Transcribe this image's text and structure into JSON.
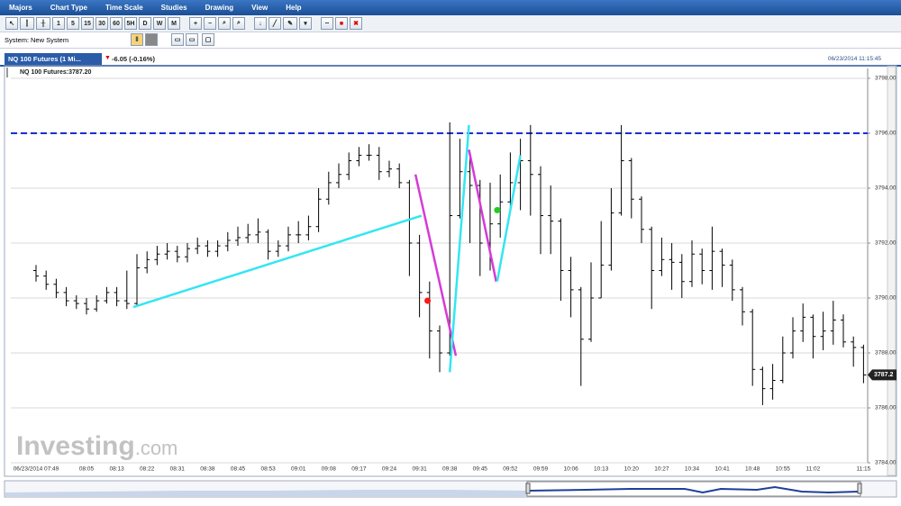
{
  "menu": [
    "Majors",
    "Chart Type",
    "Time Scale",
    "Studies",
    "Drawing",
    "View",
    "Help"
  ],
  "toolbar": {
    "intervals": [
      "1",
      "5",
      "15",
      "30",
      "60",
      "5H",
      "D",
      "W",
      "M"
    ]
  },
  "system": {
    "label": "System:",
    "value": "New System"
  },
  "tab": {
    "title": "NQ 100 Futures (1 Mi...",
    "change": "-6.05 (-0.16%)",
    "timestamp": "06/23/2014 11:15:45"
  },
  "chart_data": {
    "type": "ohlc",
    "title": "NQ 100 Futures:3787.20",
    "categories": [
      "06/23/2014 07:49",
      null,
      null,
      null,
      null,
      "08:05",
      null,
      null,
      "08:13",
      null,
      null,
      "08:22",
      null,
      null,
      "08:31",
      null,
      null,
      "08:38",
      null,
      null,
      "08:45",
      null,
      null,
      "08:53",
      null,
      null,
      "09:01",
      null,
      null,
      "09:08",
      null,
      null,
      "09:17",
      null,
      null,
      "09:24",
      null,
      null,
      "09:31",
      null,
      null,
      "09:38",
      null,
      null,
      "09:45",
      null,
      null,
      "09:52",
      null,
      null,
      "09:59",
      null,
      null,
      "10:06",
      null,
      null,
      "10:13",
      null,
      null,
      "10:20",
      null,
      null,
      "10:27",
      null,
      null,
      "10:34",
      null,
      null,
      "10:41",
      null,
      null,
      "10:48",
      null,
      null,
      "10:55",
      null,
      null,
      "11:02",
      null,
      null,
      null,
      null,
      "11:15"
    ],
    "open": [
      3791.0,
      3790.8,
      3790.5,
      3790.2,
      3789.9,
      3789.8,
      3789.6,
      3789.9,
      3790.2,
      3789.9,
      3789.8,
      3791.1,
      3791.4,
      3791.6,
      3791.7,
      3791.5,
      3791.8,
      3791.9,
      3791.7,
      3791.9,
      3792.1,
      3792.2,
      3792.3,
      3792.4,
      3791.7,
      3791.9,
      3792.3,
      3792.3,
      3792.6,
      3793.6,
      3794.2,
      3794.5,
      3795,
      3795.2,
      3795.2,
      3794.6,
      3794.7,
      3794.2,
      3792,
      3790.2,
      3788.8,
      3788,
      3793,
      3794.6,
      3794.1,
      3792,
      3792.7,
      3793.5,
      3794.2,
      3795,
      3794.5,
      3793,
      3792.8,
      3791,
      3790.3,
      3788.5,
      3790,
      3791.2,
      3793.1,
      3795,
      3793.6,
      3792.5,
      3791,
      3791.4,
      3791.3,
      3790.6,
      3791.6,
      3791,
      3791.7,
      3791.2,
      3790.3,
      3789.5,
      3787.4,
      3786.7,
      3787,
      3788,
      3788.8,
      3789.3,
      3788.6,
      3788.8,
      3789.2,
      3788.4,
      3788.2
    ],
    "high": [
      3791.2,
      3791.0,
      3790.7,
      3790.4,
      3790.1,
      3790.0,
      3790.1,
      3790.4,
      3790.4,
      3791.0,
      3791.6,
      3791.7,
      3791.9,
      3792.0,
      3791.9,
      3792.0,
      3792.2,
      3792.1,
      3792.1,
      3792.4,
      3792.6,
      3792.7,
      3792.9,
      3792.5,
      3792.1,
      3792.6,
      3792.8,
      3793.0,
      3794.0,
      3794.6,
      3794.9,
      3795.3,
      3795.5,
      3795.6,
      3795.5,
      3795.0,
      3794.9,
      3794.3,
      3792.3,
      3790.6,
      3789.0,
      3796.4,
      3795.8,
      3795.2,
      3794.3,
      3794.2,
      3794.5,
      3795.3,
      3795.8,
      3796.3,
      3794.8,
      3794.1,
      3792.9,
      3791.5,
      3790.4,
      3791.3,
      3792.8,
      3794.0,
      3796.3,
      3795.1,
      3793.7,
      3792.6,
      3792.2,
      3792.0,
      3791.6,
      3792.1,
      3791.8,
      3792.6,
      3791.8,
      3791.4,
      3790.4,
      3789.6,
      3787.5,
      3787.6,
      3788.6,
      3789.3,
      3789.8,
      3789.4,
      3789.5,
      3789.9,
      3789.4,
      3788.6,
      3788.3
    ],
    "low": [
      3790.6,
      3790.3,
      3790.0,
      3789.7,
      3789.6,
      3789.4,
      3789.5,
      3789.8,
      3789.7,
      3789.6,
      3789.7,
      3790.9,
      3791.2,
      3791.4,
      3791.3,
      3791.3,
      3791.6,
      3791.5,
      3791.5,
      3791.7,
      3791.9,
      3792.0,
      3792.0,
      3791.4,
      3791.5,
      3791.7,
      3792.0,
      3792.1,
      3792.4,
      3793.4,
      3794.0,
      3794.3,
      3794.8,
      3795.0,
      3794.3,
      3794.4,
      3794.0,
      3790.8,
      3789.3,
      3787.8,
      3787.3,
      3787.9,
      3792.9,
      3792.0,
      3790.8,
      3791.0,
      3792.2,
      3793.3,
      3793.2,
      3793.0,
      3791.6,
      3791.6,
      3789.9,
      3789.3,
      3786.8,
      3788.4,
      3790.0,
      3791.0,
      3793.0,
      3792.9,
      3792.0,
      3789.6,
      3790.8,
      3790.3,
      3790.0,
      3790.4,
      3790.5,
      3790.3,
      3790.4,
      3789.9,
      3789.0,
      3786.8,
      3786.1,
      3786.3,
      3786.9,
      3787.8,
      3788.4,
      3787.8,
      3788.1,
      3788.3,
      3788.2,
      3787.5,
      3786.9
    ],
    "close": [
      3790.8,
      3790.5,
      3790.2,
      3789.9,
      3789.8,
      3789.6,
      3789.9,
      3790.2,
      3789.9,
      3789.8,
      3791.1,
      3791.4,
      3791.6,
      3791.7,
      3791.5,
      3791.8,
      3791.9,
      3791.7,
      3791.9,
      3792.1,
      3792.2,
      3792.3,
      3792.4,
      3791.7,
      3791.9,
      3792.3,
      3792.3,
      3792.6,
      3793.6,
      3794.2,
      3794.5,
      3795,
      3795.2,
      3795.2,
      3794.6,
      3794.7,
      3794.2,
      3792,
      3790.2,
      3788.8,
      3788,
      3793,
      3794.6,
      3794.1,
      3792,
      3792.7,
      3793.5,
      3794.2,
      3795,
      3794.5,
      3793,
      3792.8,
      3791,
      3790.3,
      3788.5,
      3790,
      3791.2,
      3793.1,
      3795,
      3793.6,
      3792.5,
      3791,
      3791.4,
      3791.3,
      3790.6,
      3791.6,
      3791,
      3791.7,
      3791.2,
      3790.3,
      3789.5,
      3787.4,
      3786.7,
      3787,
      3788,
      3788.8,
      3789.3,
      3788.6,
      3788.8,
      3789.2,
      3788.4,
      3788.2,
      3787.2
    ],
    "color": "#000000",
    "ylim": [
      3784,
      3798.23
    ],
    "yticks": [
      {
        "value": 3784,
        "label": "3784.00"
      },
      {
        "value": 3786,
        "label": "3786.00"
      },
      {
        "value": 3788,
        "label": "3788.00"
      },
      {
        "value": 3790,
        "label": "3790.00"
      },
      {
        "value": 3792,
        "label": "3792.00"
      },
      {
        "value": 3794,
        "label": "3794.00"
      },
      {
        "value": 3796,
        "label": "3796.00"
      },
      {
        "value": 3798,
        "label": "3798.00"
      }
    ],
    "grid": true,
    "last_price": {
      "value": 3787.2,
      "label": "3787.2"
    },
    "hline": {
      "value": 3796,
      "color": "#1a2fd0"
    },
    "trendlines": [
      {
        "color": "#33e6f2",
        "from": [
          9.64,
          3789.67
        ],
        "to": [
          38.2,
          3793.0
        ]
      },
      {
        "color": "#d63ad6",
        "from": [
          37.6,
          3794.5
        ],
        "to": [
          41.6,
          3787.9
        ]
      },
      {
        "color": "#33e6f2",
        "from": [
          41.0,
          3787.3
        ],
        "to": [
          42.9,
          3796.3
        ]
      },
      {
        "color": "#d63ad6",
        "from": [
          42.9,
          3795.4
        ],
        "to": [
          45.6,
          3790.6
        ]
      },
      {
        "color": "#33e6f2",
        "from": [
          45.7,
          3790.6
        ],
        "to": [
          48.0,
          3795.2
        ]
      }
    ],
    "markers": [
      {
        "color": "#ff1a1a",
        "x": 38.8,
        "y": 3789.9
      },
      {
        "color": "#22cc22",
        "x": 45.7,
        "y": 3793.2
      }
    ],
    "watermark": [
      "Investing",
      ".com"
    ]
  }
}
